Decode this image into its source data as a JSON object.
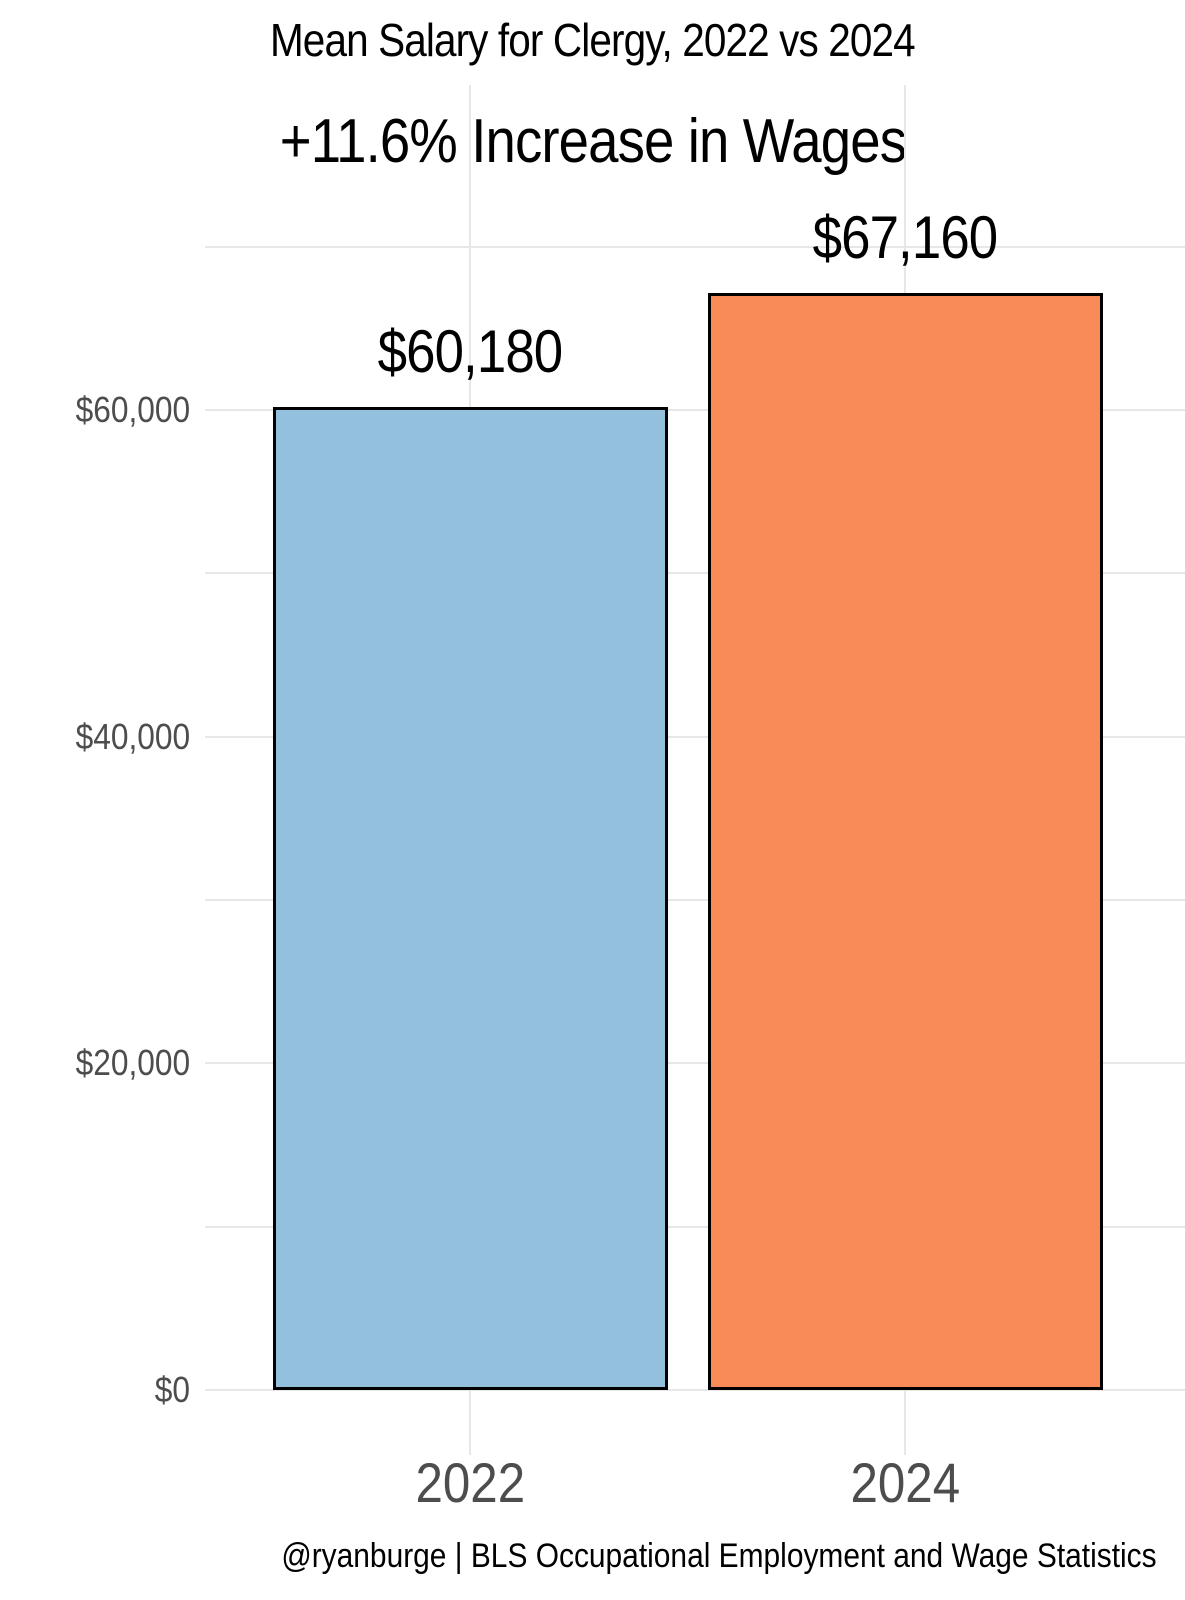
{
  "header": {
    "title": "Mean Salary for Clergy, 2022 vs 2024",
    "subtitle": "+11.6% Increase in Wages"
  },
  "footer": {
    "caption": "@ryanburge | BLS Occupational Employment and Wage Statistics"
  },
  "chart_data": {
    "type": "bar",
    "title": "Mean Salary for Clergy, 2022 vs 2024",
    "subtitle": "+11.6% Increase in Wages",
    "caption": "@ryanburge | BLS Occupational Employment and Wage Statistics",
    "categories": [
      "2022",
      "2024"
    ],
    "values": [
      60180,
      67160
    ],
    "bar_labels": [
      "$60,180",
      "$67,160"
    ],
    "bar_colors": [
      "#92c0dd",
      "#f98b58"
    ],
    "bar_border_color": "#000000",
    "xlabel": "",
    "ylabel": "",
    "ylim": [
      0,
      80000
    ],
    "y_major_step": 20000,
    "y_minor_step": 10000,
    "y_tick_values": [
      0,
      20000,
      40000,
      60000
    ],
    "y_tick_labels": [
      "$0",
      "$20,000",
      "$40,000",
      "$60,000"
    ],
    "grid": true,
    "gridline_color": "#e7e7e7",
    "axis_text_color": "#4d4d4d",
    "legend": "none",
    "background_color": "#ffffff"
  }
}
